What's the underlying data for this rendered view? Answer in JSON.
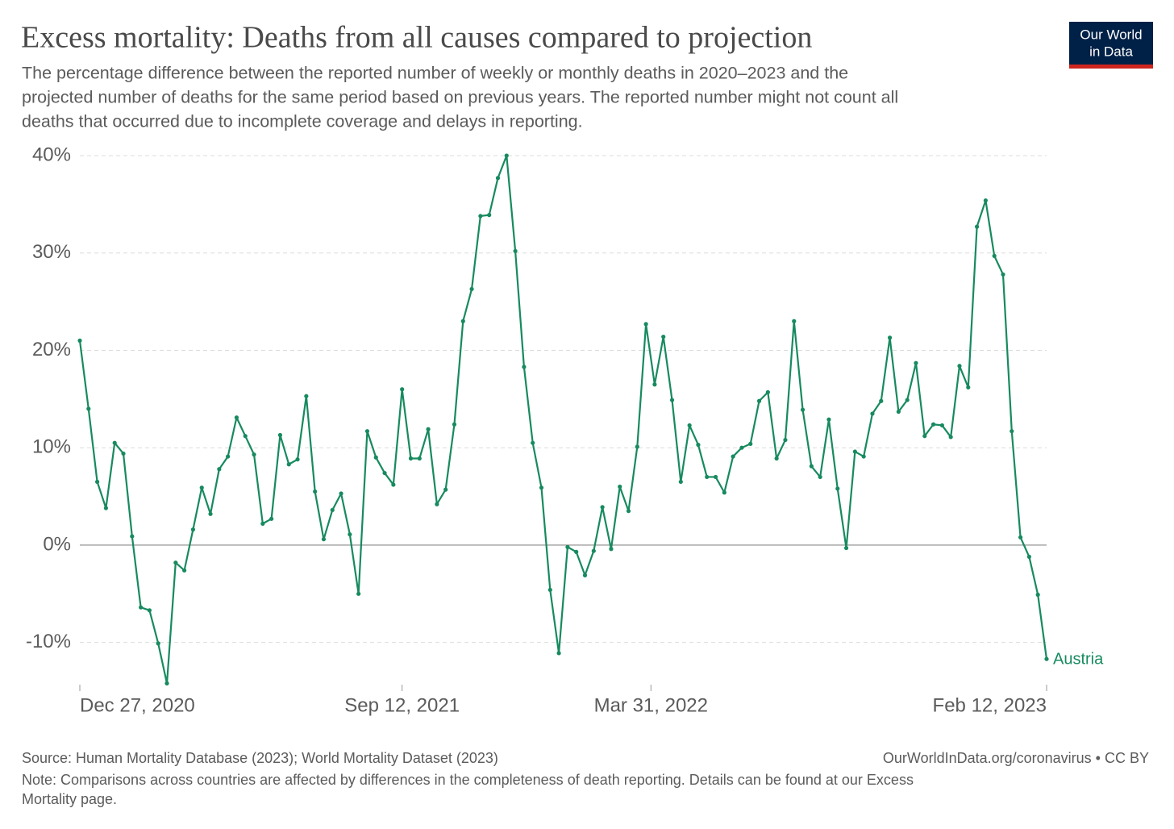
{
  "header": {
    "logo": [
      "Our World",
      "in Data"
    ]
  },
  "chart_data": {
    "type": "line",
    "title": "Excess mortality: Deaths from all causes compared to projection",
    "subtitle": [
      "The percentage difference between the reported number of weekly or monthly deaths in 2020–2023 and the",
      "projected number of deaths for the same period based on previous years. The reported number might not count all",
      "deaths that occurred due to incomplete coverage and delays in reporting."
    ],
    "x": [
      "2020-12-27",
      "2021-01-03",
      "2021-01-10",
      "2021-01-17",
      "2021-01-24",
      "2021-01-31",
      "2021-02-07",
      "2021-02-14",
      "2021-02-21",
      "2021-02-28",
      "2021-03-07",
      "2021-03-14",
      "2021-03-21",
      "2021-03-28",
      "2021-04-04",
      "2021-04-11",
      "2021-04-18",
      "2021-04-25",
      "2021-05-02",
      "2021-05-09",
      "2021-05-16",
      "2021-05-23",
      "2021-05-30",
      "2021-06-06",
      "2021-06-13",
      "2021-06-20",
      "2021-06-27",
      "2021-07-04",
      "2021-07-11",
      "2021-07-18",
      "2021-07-25",
      "2021-08-01",
      "2021-08-08",
      "2021-08-15",
      "2021-08-22",
      "2021-08-29",
      "2021-09-05",
      "2021-09-12",
      "2021-09-19",
      "2021-09-26",
      "2021-10-03",
      "2021-10-10",
      "2021-10-17",
      "2021-10-24",
      "2021-10-31",
      "2021-11-07",
      "2021-11-14",
      "2021-11-21",
      "2021-11-28",
      "2021-12-05",
      "2021-12-12",
      "2021-12-19",
      "2021-12-26",
      "2022-01-02",
      "2022-01-09",
      "2022-01-16",
      "2022-01-23",
      "2022-01-30",
      "2022-02-06",
      "2022-02-13",
      "2022-02-20",
      "2022-02-27",
      "2022-03-06",
      "2022-03-13",
      "2022-03-20",
      "2022-03-27",
      "2022-04-03",
      "2022-04-10",
      "2022-04-17",
      "2022-04-24",
      "2022-05-01",
      "2022-05-08",
      "2022-05-15",
      "2022-05-22",
      "2022-05-29",
      "2022-06-05",
      "2022-06-12",
      "2022-06-19",
      "2022-06-26",
      "2022-07-03",
      "2022-07-10",
      "2022-07-17",
      "2022-07-24",
      "2022-07-31",
      "2022-08-07",
      "2022-08-14",
      "2022-08-21",
      "2022-08-28",
      "2022-09-04",
      "2022-09-11",
      "2022-09-18",
      "2022-09-25",
      "2022-10-02",
      "2022-10-09",
      "2022-10-16",
      "2022-10-23",
      "2022-10-30",
      "2022-11-06",
      "2022-11-13",
      "2022-11-20",
      "2022-11-27",
      "2022-12-04",
      "2022-12-11",
      "2022-12-18",
      "2022-12-25",
      "2023-01-01",
      "2023-01-08",
      "2023-01-15",
      "2023-01-22",
      "2023-01-29",
      "2023-02-05",
      "2023-02-12"
    ],
    "series": [
      {
        "name": "Austria",
        "color": "#178a5f",
        "values": [
          21.0,
          14.0,
          6.5,
          3.8,
          10.5,
          9.4,
          0.9,
          -6.4,
          -6.7,
          -10.1,
          -14.2,
          -1.8,
          -2.6,
          1.6,
          5.9,
          3.2,
          7.8,
          9.1,
          13.1,
          11.2,
          9.3,
          2.2,
          2.7,
          11.3,
          8.3,
          8.8,
          15.3,
          5.5,
          0.6,
          3.6,
          5.3,
          1.1,
          -5.0,
          11.7,
          9.0,
          7.4,
          6.2,
          16.0,
          8.9,
          8.9,
          11.9,
          4.2,
          5.7,
          12.4,
          23.0,
          26.3,
          33.8,
          33.9,
          37.7,
          40.0,
          30.2,
          18.3,
          10.5,
          5.9,
          -4.6,
          -11.1,
          -0.2,
          -0.7,
          -3.1,
          -0.6,
          3.9,
          -0.4,
          6.0,
          3.5,
          10.1,
          22.7,
          16.5,
          21.4,
          14.9,
          6.5,
          12.3,
          10.3,
          7.0,
          7.0,
          5.4,
          9.1,
          10.0,
          10.4,
          14.8,
          15.7,
          8.9,
          10.8,
          23.0,
          13.9,
          8.1,
          7.0,
          12.9,
          5.8,
          -0.3,
          9.6,
          9.1,
          13.5,
          14.8,
          21.3,
          13.7,
          14.9,
          18.7,
          11.2,
          12.4,
          12.3,
          11.1,
          18.4,
          16.2,
          32.7,
          35.4,
          29.7,
          27.8,
          11.7,
          0.8,
          -1.2,
          -5.1,
          -11.7
        ]
      }
    ],
    "xlim": [
      "2020-12-27",
      "2023-02-12"
    ],
    "xticks": [
      {
        "value": "2020-12-27",
        "label": "Dec 27, 2020"
      },
      {
        "value": "2021-09-12",
        "label": "Sep 12, 2021"
      },
      {
        "value": "2022-03-31",
        "label": "Mar 31, 2022"
      },
      {
        "value": "2023-02-12",
        "label": "Feb 12, 2023"
      }
    ],
    "ylim": [
      -14.5,
      40
    ],
    "yticks": [
      {
        "value": -10,
        "label": "-10%"
      },
      {
        "value": 0,
        "label": "0%"
      },
      {
        "value": 10,
        "label": "10%"
      },
      {
        "value": 20,
        "label": "20%"
      },
      {
        "value": 30,
        "label": "30%"
      },
      {
        "value": 40,
        "label": "40%"
      }
    ],
    "grid": true,
    "source": "Source: Human Mortality Database (2023); World Mortality Dataset (2023)",
    "credit": "OurWorldInData.org/coronavirus • CC BY",
    "note": [
      "Note: Comparisons across countries are affected by differences in the completeness of death reporting. Details can be found at our Excess",
      "Mortality page."
    ]
  }
}
